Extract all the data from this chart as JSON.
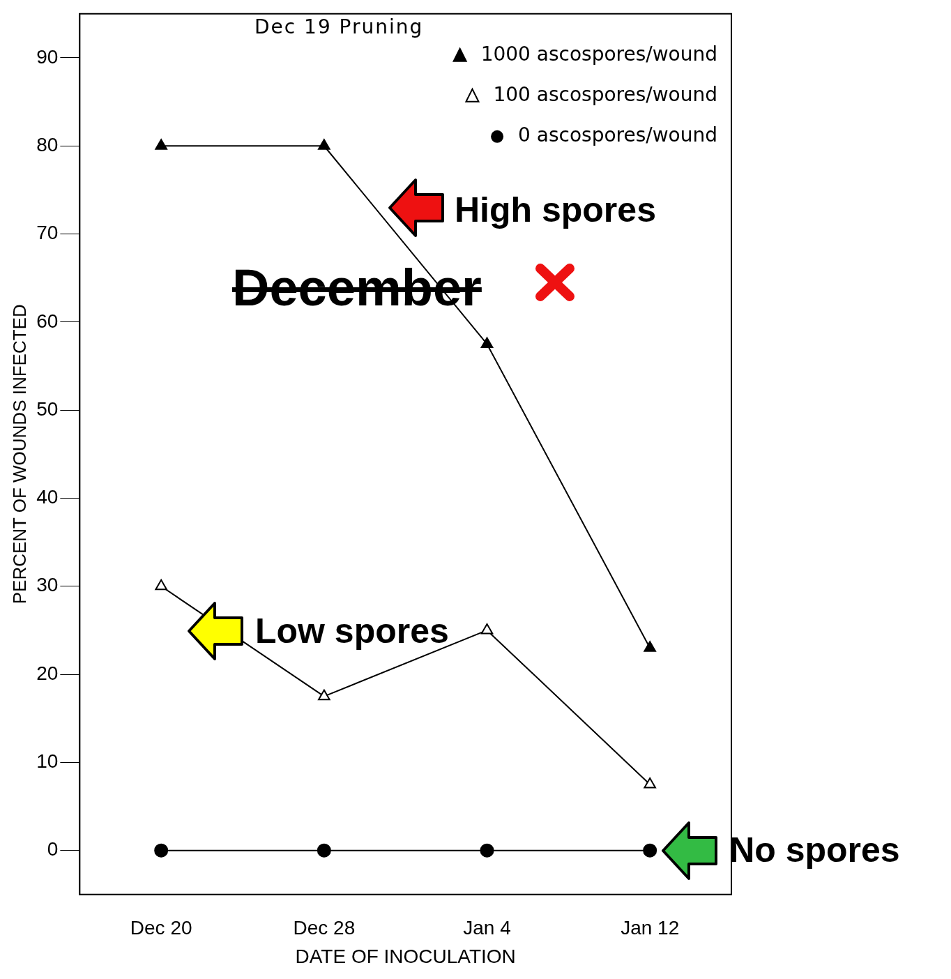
{
  "chart_data": {
    "type": "line",
    "xlabel": "DATE OF INOCULATION",
    "ylabel": "PERCENT OF WOUNDS INFECTED",
    "categories": [
      "Dec 20",
      "Dec 28",
      "Jan 4",
      "Jan 12"
    ],
    "series": [
      {
        "name": "1000 ascospores/wound",
        "color": "#000000",
        "marker": "triangle",
        "values": [
          80,
          80,
          57.5,
          23
        ]
      },
      {
        "name": "100 ascospores/wound",
        "color": "#000000",
        "marker": "triangle",
        "values": [
          30,
          17.5,
          25,
          7.5
        ]
      },
      {
        "name": "0 ascospores/wound",
        "color": "#000000",
        "marker": "circle",
        "values": [
          0,
          0,
          0,
          0
        ]
      }
    ],
    "ylim": [
      -5,
      95
    ],
    "yticks": [
      0,
      10,
      20,
      30,
      40,
      50,
      60,
      70,
      80,
      90
    ],
    "grid": false,
    "legend": "top right",
    "annotations": [
      "Dec 19 Pruning",
      "High spores",
      "December",
      "Low spores",
      {
        "text": "No spores",
        "x": "Jan 12",
        "y": 0
      }
    ]
  }
}
